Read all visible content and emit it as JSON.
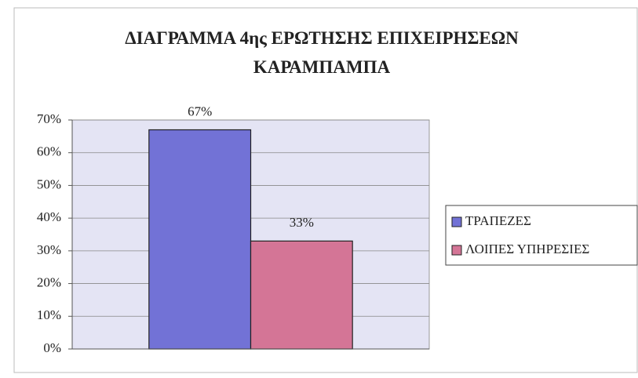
{
  "chart_data": {
    "type": "bar",
    "title": "ΔΙΑΓΡΑΜΜΑ 4ης ΕΡΩΤΗΣΗΣ ΕΠΙΧΕΙΡΗΣΕΩΝ ΚΑΡΑΜΠΑΜΠΑ",
    "categories": [
      null
    ],
    "series": [
      {
        "name": "ΤΡΑΠΕΖΕΣ",
        "color": "#7272d6",
        "values": [
          67
        ],
        "value_labels": [
          "67%"
        ]
      },
      {
        "name": "ΛΟΙΠΕΣ ΥΠΗΡΕΣΙΕΣ",
        "color": "#d47596",
        "values": [
          33
        ],
        "value_labels": [
          "33%"
        ]
      }
    ],
    "ylim": [
      0,
      70
    ],
    "yticks": [
      {
        "value": 0,
        "label": "0%"
      },
      {
        "value": 10,
        "label": "10%"
      },
      {
        "value": 20,
        "label": "20%"
      },
      {
        "value": 30,
        "label": "30%"
      },
      {
        "value": 40,
        "label": "40%"
      },
      {
        "value": 50,
        "label": "50%"
      },
      {
        "value": 60,
        "label": "60%"
      },
      {
        "value": 70,
        "label": "70%"
      }
    ],
    "grid": true,
    "legend": "right"
  }
}
